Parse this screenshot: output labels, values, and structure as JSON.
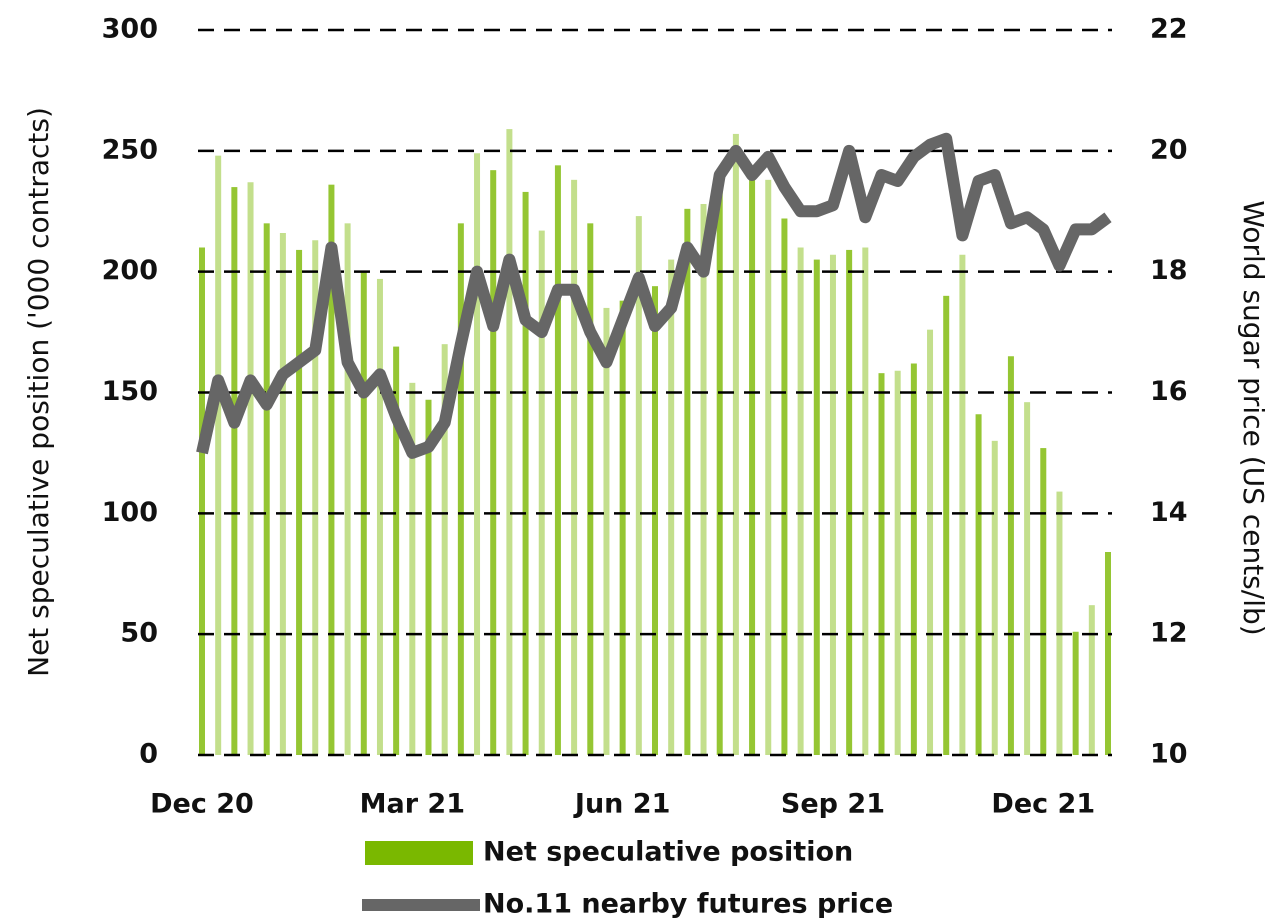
{
  "chart_data": {
    "type": "bar_line",
    "categories": [
      "Dec 20",
      null,
      null,
      null,
      null,
      null,
      null,
      null,
      null,
      null,
      null,
      null,
      null,
      "Mar 21",
      null,
      null,
      null,
      null,
      null,
      null,
      null,
      null,
      null,
      null,
      null,
      null,
      "Jun 21",
      null,
      null,
      null,
      null,
      null,
      null,
      null,
      null,
      null,
      null,
      null,
      null,
      "Sep 21",
      null,
      null,
      null,
      null,
      null,
      null,
      null,
      null,
      null,
      null,
      null,
      null,
      "Dec 21",
      null,
      null,
      null,
      null
    ],
    "ylabel": "Net speculative position ('000 contracts)",
    "y2label": "World sugar price (US cents/lb)",
    "ylim": [
      0,
      300
    ],
    "yticks": [
      0,
      50,
      100,
      150,
      200,
      250,
      300
    ],
    "y2lim": [
      10,
      22
    ],
    "y2ticks": [
      10,
      12,
      14,
      16,
      18,
      20,
      22
    ],
    "grid": true,
    "series": [
      {
        "name": "Net speculative position",
        "type": "bar",
        "color": "#7ab800",
        "values": [
          210,
          248,
          235,
          237,
          220,
          216,
          209,
          213,
          236,
          220,
          200,
          197,
          169,
          154,
          147,
          170,
          220,
          249,
          242,
          259,
          233,
          217,
          244,
          238,
          220,
          185,
          188,
          223,
          194,
          205,
          226,
          228,
          233,
          257,
          242,
          238,
          222,
          210,
          205,
          207,
          209,
          210,
          158,
          159,
          162,
          176,
          190,
          207,
          141,
          130,
          165,
          146,
          127,
          109,
          51,
          62,
          84
        ]
      },
      {
        "name": "No.11 nearby futures price",
        "type": "line",
        "axis": "y2",
        "color": "#666666",
        "values": [
          15.0,
          16.2,
          15.5,
          16.2,
          15.8,
          16.3,
          16.5,
          16.7,
          18.4,
          16.5,
          16.0,
          16.3,
          15.6,
          15.0,
          15.1,
          15.5,
          16.8,
          18.0,
          17.1,
          18.2,
          17.2,
          17.0,
          17.7,
          17.7,
          17.0,
          16.5,
          17.2,
          17.9,
          17.1,
          17.4,
          18.4,
          18.0,
          19.6,
          20.0,
          19.6,
          19.9,
          19.4,
          19.0,
          19.0,
          19.1,
          20.0,
          18.9,
          19.6,
          19.5,
          19.9,
          20.1,
          20.2,
          18.6,
          19.5,
          19.6,
          18.8,
          18.9,
          18.7,
          18.1,
          18.7,
          18.7,
          18.9
        ]
      }
    ]
  }
}
